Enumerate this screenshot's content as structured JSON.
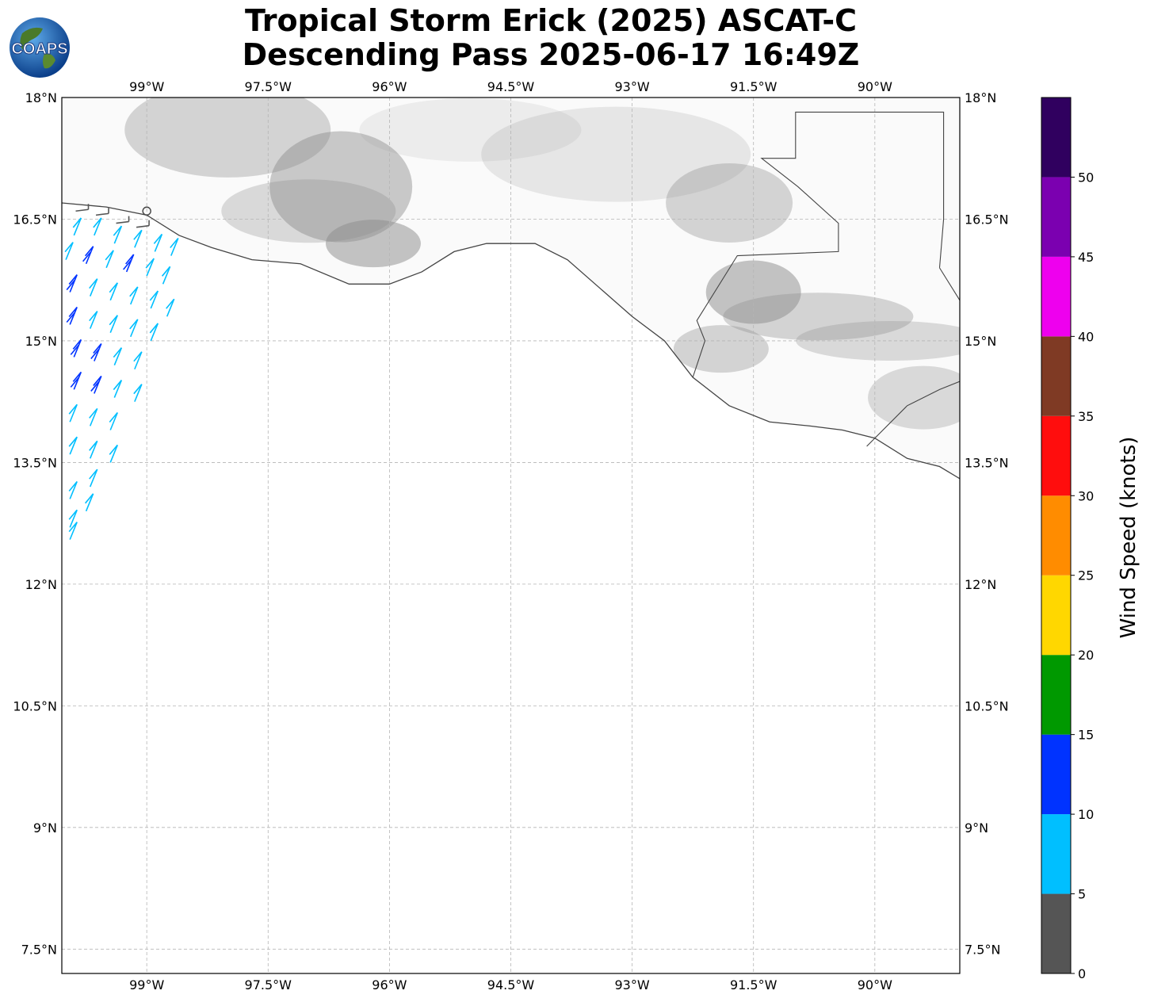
{
  "title": {
    "line1": "Tropical Storm Erick (2025) ASCAT-C",
    "line2": "Descending Pass 2025-06-17 16:49Z"
  },
  "logo": {
    "text": "COAPS",
    "icon": "globe-icon"
  },
  "map": {
    "lon_range": [
      -100.05,
      -88.95
    ],
    "lat_range": [
      7.2,
      18.0
    ],
    "lon_ticks": [
      -99,
      -97.5,
      -96,
      -94.5,
      -93,
      -91.5,
      -90
    ],
    "lon_labels": [
      "99°W",
      "97.5°W",
      "96°W",
      "94.5°W",
      "93°W",
      "91.5°W",
      "90°W"
    ],
    "lat_ticks": [
      18,
      16.5,
      15,
      13.5,
      12,
      10.5,
      9,
      7.5
    ],
    "lat_labels": [
      "18°N",
      "16.5°N",
      "15°N",
      "13.5°N",
      "12°N",
      "10.5°N",
      "9°N",
      "7.5°N"
    ],
    "coastline": [
      [
        -100.05,
        16.7
      ],
      [
        -99.5,
        16.65
      ],
      [
        -99.0,
        16.55
      ],
      [
        -98.6,
        16.3
      ],
      [
        -98.2,
        16.15
      ],
      [
        -97.7,
        16.0
      ],
      [
        -97.1,
        15.95
      ],
      [
        -96.5,
        15.7
      ],
      [
        -96.0,
        15.7
      ],
      [
        -95.6,
        15.85
      ],
      [
        -95.2,
        16.1
      ],
      [
        -94.8,
        16.2
      ],
      [
        -94.2,
        16.2
      ],
      [
        -93.8,
        16.0
      ],
      [
        -93.4,
        15.65
      ],
      [
        -93.0,
        15.3
      ],
      [
        -92.6,
        15.0
      ],
      [
        -92.25,
        14.55
      ],
      [
        -91.8,
        14.2
      ],
      [
        -91.3,
        14.0
      ],
      [
        -90.8,
        13.95
      ],
      [
        -90.4,
        13.9
      ],
      [
        -90.0,
        13.8
      ],
      [
        -89.6,
        13.55
      ],
      [
        -89.2,
        13.45
      ],
      [
        -88.95,
        13.3
      ]
    ],
    "borders": [
      [
        [
          -92.25,
          14.55
        ],
        [
          -92.1,
          15.0
        ],
        [
          -92.2,
          15.25
        ],
        [
          -91.7,
          16.05
        ],
        [
          -90.45,
          16.1
        ],
        [
          -90.45,
          16.45
        ],
        [
          -90.95,
          16.9
        ],
        [
          -91.4,
          17.25
        ],
        [
          -90.98,
          17.25
        ],
        [
          -90.98,
          17.82
        ],
        [
          -89.15,
          17.82
        ],
        [
          -89.15,
          16.5
        ],
        [
          -89.2,
          15.9
        ]
      ],
      [
        [
          -89.2,
          15.9
        ],
        [
          -88.95,
          15.5
        ]
      ],
      [
        [
          -90.1,
          13.7
        ],
        [
          -89.6,
          14.2
        ],
        [
          -89.2,
          14.4
        ],
        [
          -88.95,
          14.5
        ]
      ]
    ],
    "grid": true
  },
  "wind_barbs": [
    {
      "lon": -99.9,
      "lat": 16.3,
      "speed": 8
    },
    {
      "lon": -99.65,
      "lat": 16.3,
      "speed": 8
    },
    {
      "lon": -99.4,
      "lat": 16.2,
      "speed": 7
    },
    {
      "lon": -99.15,
      "lat": 16.15,
      "speed": 7
    },
    {
      "lon": -98.9,
      "lat": 16.1,
      "speed": 8
    },
    {
      "lon": -98.7,
      "lat": 16.05,
      "speed": 7
    },
    {
      "lon": -100.0,
      "lat": 16.0,
      "speed": 8
    },
    {
      "lon": -99.75,
      "lat": 15.95,
      "speed": 12
    },
    {
      "lon": -99.5,
      "lat": 15.9,
      "speed": 8
    },
    {
      "lon": -99.25,
      "lat": 15.85,
      "speed": 13
    },
    {
      "lon": -99.0,
      "lat": 15.8,
      "speed": 8
    },
    {
      "lon": -98.8,
      "lat": 15.7,
      "speed": 7
    },
    {
      "lon": -99.95,
      "lat": 15.6,
      "speed": 12
    },
    {
      "lon": -99.7,
      "lat": 15.55,
      "speed": 8
    },
    {
      "lon": -99.45,
      "lat": 15.5,
      "speed": 8
    },
    {
      "lon": -99.2,
      "lat": 15.45,
      "speed": 8
    },
    {
      "lon": -98.95,
      "lat": 15.4,
      "speed": 8
    },
    {
      "lon": -98.75,
      "lat": 15.3,
      "speed": 8
    },
    {
      "lon": -99.95,
      "lat": 15.2,
      "speed": 13
    },
    {
      "lon": -99.7,
      "lat": 15.15,
      "speed": 8
    },
    {
      "lon": -99.45,
      "lat": 15.1,
      "speed": 8
    },
    {
      "lon": -99.2,
      "lat": 15.05,
      "speed": 8
    },
    {
      "lon": -98.95,
      "lat": 15.0,
      "speed": 8
    },
    {
      "lon": -99.9,
      "lat": 14.8,
      "speed": 12
    },
    {
      "lon": -99.65,
      "lat": 14.75,
      "speed": 12
    },
    {
      "lon": -99.4,
      "lat": 14.7,
      "speed": 8
    },
    {
      "lon": -99.15,
      "lat": 14.65,
      "speed": 8
    },
    {
      "lon": -99.9,
      "lat": 14.4,
      "speed": 12
    },
    {
      "lon": -99.65,
      "lat": 14.35,
      "speed": 13
    },
    {
      "lon": -99.4,
      "lat": 14.3,
      "speed": 8
    },
    {
      "lon": -99.15,
      "lat": 14.25,
      "speed": 8
    },
    {
      "lon": -99.95,
      "lat": 14.0,
      "speed": 8
    },
    {
      "lon": -99.7,
      "lat": 13.95,
      "speed": 8
    },
    {
      "lon": -99.45,
      "lat": 13.9,
      "speed": 8
    },
    {
      "lon": -99.95,
      "lat": 13.6,
      "speed": 8
    },
    {
      "lon": -99.7,
      "lat": 13.55,
      "speed": 8
    },
    {
      "lon": -99.45,
      "lat": 13.5,
      "speed": 8
    },
    {
      "lon": -99.7,
      "lat": 13.2,
      "speed": 8
    },
    {
      "lon": -99.95,
      "lat": 13.05,
      "speed": 7
    },
    {
      "lon": -99.75,
      "lat": 12.9,
      "speed": 7
    },
    {
      "lon": -99.95,
      "lat": 12.7,
      "speed": 7
    },
    {
      "lon": -99.95,
      "lat": 12.55,
      "speed": 7
    },
    {
      "lon": -99.8,
      "lat": 16.6,
      "speed": 3
    },
    {
      "lon": -99.55,
      "lat": 16.55,
      "speed": 3
    },
    {
      "lon": -99.3,
      "lat": 16.45,
      "speed": 3
    },
    {
      "lon": -99.05,
      "lat": 16.4,
      "speed": 2
    }
  ],
  "colorbar": {
    "label": "Wind Speed (knots)",
    "bounds": [
      0,
      5,
      10,
      15,
      20,
      25,
      30,
      35,
      40,
      45,
      50,
      55
    ],
    "colors": [
      "#555555",
      "#00bfff",
      "#0033ff",
      "#009900",
      "#ffd700",
      "#ff8c00",
      "#ff0d0d",
      "#7f3a24",
      "#ee00ee",
      "#7b00b0",
      "#30005f"
    ],
    "tick_labels": [
      "0",
      "5",
      "10",
      "15",
      "20",
      "25",
      "30",
      "35",
      "40",
      "45",
      "50"
    ]
  }
}
